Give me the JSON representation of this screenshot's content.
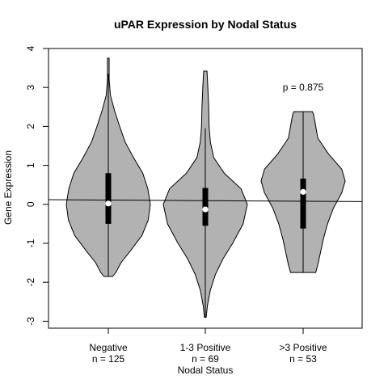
{
  "chart_data": {
    "type": "violin",
    "title": "uPAR Expression by Nodal Status",
    "xlabel": "Nodal Status",
    "ylabel": "Gene Expression",
    "ylim": [
      -3.2,
      4.0
    ],
    "yticks": [
      -3,
      -2,
      -1,
      0,
      1,
      2,
      3,
      4
    ],
    "annotation": "p = 0.875",
    "groups": [
      {
        "name": "Negative",
        "n_label": "n = 125",
        "min": -1.85,
        "q1": -0.5,
        "median": 0.02,
        "q3": 0.8,
        "max": 3.75,
        "whisker_low": -1.85,
        "whisker_high": 3.35,
        "profile": [
          [
            -1.85,
            0.1
          ],
          [
            -1.75,
            0.18
          ],
          [
            -1.5,
            0.3
          ],
          [
            -1.2,
            0.52
          ],
          [
            -0.8,
            0.8
          ],
          [
            -0.4,
            0.95
          ],
          [
            0,
            1.0
          ],
          [
            0.4,
            0.94
          ],
          [
            0.8,
            0.82
          ],
          [
            1.2,
            0.6
          ],
          [
            1.6,
            0.4
          ],
          [
            2.0,
            0.27
          ],
          [
            2.4,
            0.15
          ],
          [
            2.8,
            0.05
          ],
          [
            3.2,
            0.02
          ],
          [
            3.75,
            0.02
          ]
        ]
      },
      {
        "name": "1-3 Positive",
        "n_label": "n = 69",
        "min": -2.9,
        "q1": -0.55,
        "median": -0.13,
        "q3": 0.42,
        "max": 3.42,
        "whisker_low": -2.9,
        "whisker_high": 1.95,
        "profile": [
          [
            -2.9,
            0.02
          ],
          [
            -2.6,
            0.05
          ],
          [
            -2.2,
            0.12
          ],
          [
            -1.8,
            0.24
          ],
          [
            -1.4,
            0.42
          ],
          [
            -1.0,
            0.65
          ],
          [
            -0.5,
            0.9
          ],
          [
            0,
            1.0
          ],
          [
            0.4,
            0.85
          ],
          [
            0.8,
            0.45
          ],
          [
            1.2,
            0.2
          ],
          [
            1.6,
            0.12
          ],
          [
            2.0,
            0.09
          ],
          [
            2.5,
            0.08
          ],
          [
            3.0,
            0.06
          ],
          [
            3.42,
            0.04
          ]
        ]
      },
      {
        "name": ">3 Positive",
        "n_label": "n = 53",
        "min": -1.75,
        "q1": -0.62,
        "median": 0.32,
        "q3": 0.66,
        "max": 2.38,
        "whisker_low": -1.75,
        "whisker_high": 2.38,
        "profile": [
          [
            -1.75,
            0.3
          ],
          [
            -1.55,
            0.35
          ],
          [
            -1.3,
            0.4
          ],
          [
            -0.9,
            0.48
          ],
          [
            -0.5,
            0.58
          ],
          [
            -0.1,
            0.72
          ],
          [
            0.3,
            0.92
          ],
          [
            0.6,
            1.0
          ],
          [
            0.9,
            0.92
          ],
          [
            1.3,
            0.6
          ],
          [
            1.7,
            0.35
          ],
          [
            2.0,
            0.3
          ],
          [
            2.3,
            0.25
          ],
          [
            2.38,
            0.22
          ]
        ]
      }
    ],
    "trend_line": [
      0.12,
      0.07
    ],
    "colors": {
      "violin_fill": "#b2b2b2",
      "stroke": "#000000",
      "median_dot": "#ffffff"
    }
  }
}
